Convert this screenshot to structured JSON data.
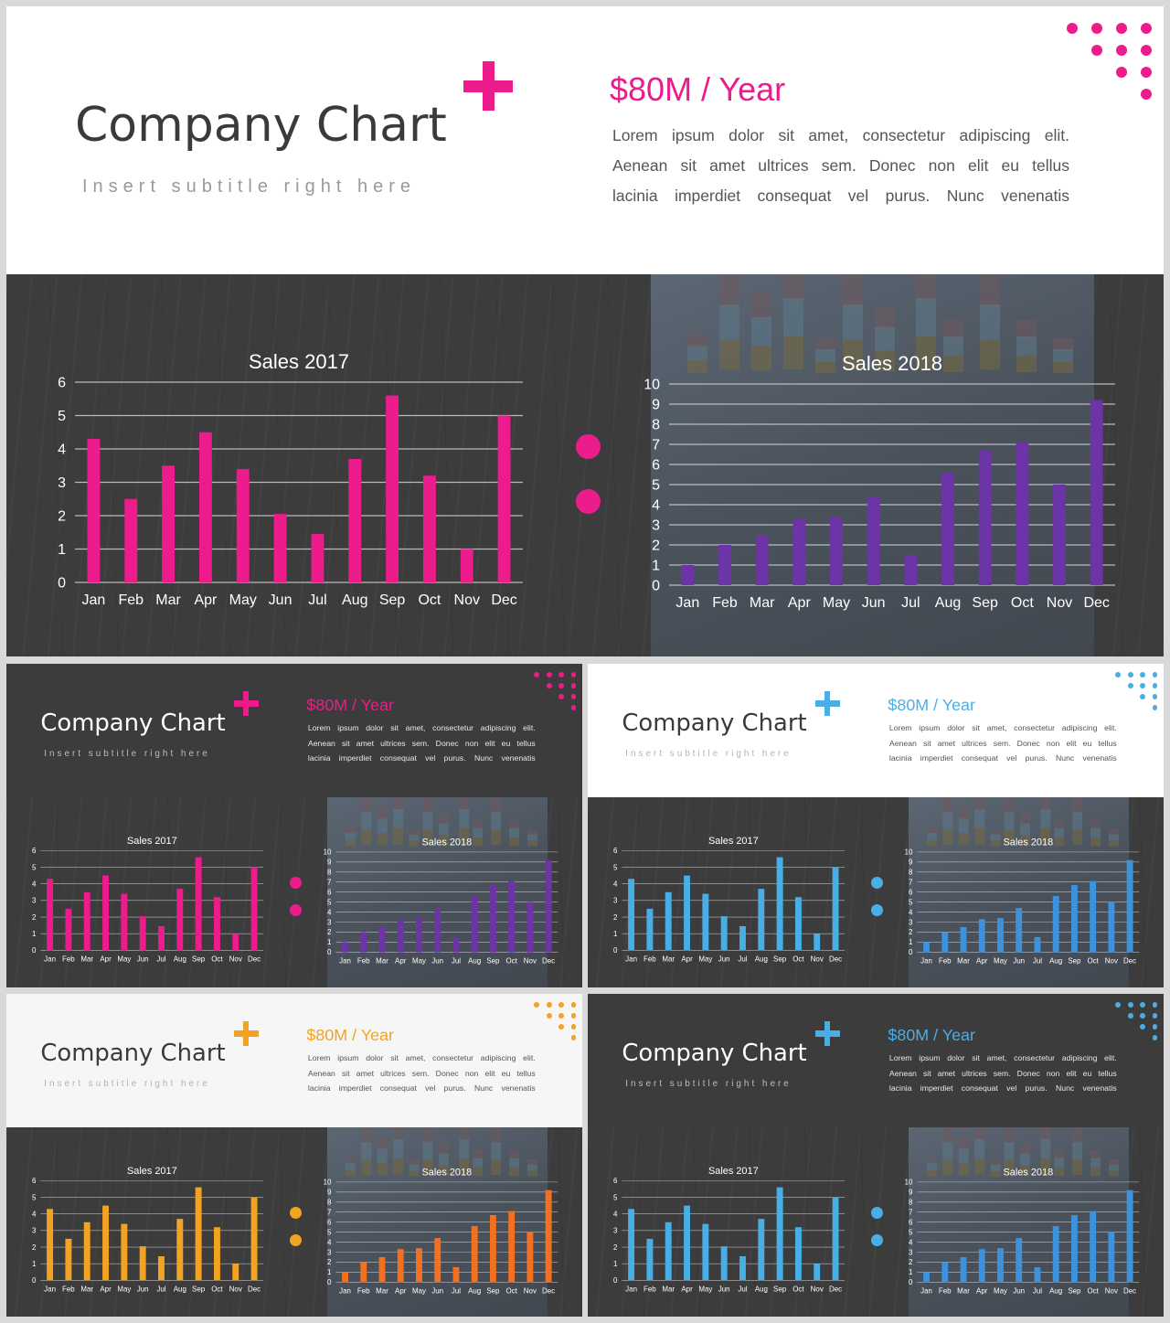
{
  "theme": {
    "pink": "#ec1c8c",
    "purple": "#6d34a8",
    "lightblue": "#4aaee6",
    "blue": "#3c92dc",
    "gold": "#f2a321",
    "orange": "#f37021",
    "dark_gray": "#3c3c3c",
    "white": "#ffffff"
  },
  "slides": [
    {
      "header": {
        "title": "Company Chart",
        "subtitle": "Insert subtitle right here",
        "amount": "$80M / Year",
        "description": [
          "Lorem ipsum dolor sit amet, consectetur adipiscing elit.",
          "Aenean sit amet ultrices sem. Donec non elit eu tellus",
          "lacinia imperdiet consequat vel purus. Nunc venenatis"
        ]
      }
    },
    {
      "header": {
        "title": "Company Chart",
        "subtitle": "Insert subtitle right here",
        "amount": "$80M / Year",
        "description": [
          "Lorem ipsum dolor sit amet, consectetur adipiscing elit.",
          "Aenean sit amet ultrices sem. Donec non elit eu tellus",
          "lacinia imperdiet consequat vel purus. Nunc venenatis"
        ]
      }
    },
    {
      "header": {
        "title": "Company Chart",
        "subtitle": "Insert subtitle right here",
        "amount": "$80M / Year",
        "description": [
          "Lorem ipsum dolor sit amet, consectetur adipiscing elit.",
          "Aenean sit amet ultrices sem. Donec non elit eu tellus",
          "lacinia imperdiet consequat vel purus. Nunc venenatis"
        ]
      }
    },
    {
      "header": {
        "title": "Company Chart",
        "subtitle": "Insert subtitle right here",
        "amount": "$80M / Year",
        "description": [
          "Lorem ipsum dolor sit amet, consectetur adipiscing elit.",
          "Aenean sit amet ultrices sem. Donec non elit eu tellus",
          "lacinia imperdiet consequat vel purus. Nunc venenatis"
        ]
      }
    },
    {
      "header": {
        "title": "Company Chart",
        "subtitle": "Insert subtitle right here",
        "amount": "$80M / Year",
        "description": [
          "Lorem ipsum dolor sit amet, consectetur adipiscing elit.",
          "Aenean sit amet ultrices sem. Donec non elit eu tellus",
          "lacinia imperdiet consequat vel purus. Nunc venenatis"
        ]
      }
    }
  ],
  "chart_data": [
    {
      "type": "bar",
      "title": "Sales 2017",
      "categories": [
        "Jan",
        "Feb",
        "Mar",
        "Apr",
        "May",
        "Jun",
        "Jul",
        "Aug",
        "Sep",
        "Oct",
        "Nov",
        "Dec"
      ],
      "values": [
        4.3,
        2.5,
        3.5,
        4.5,
        3.4,
        2.05,
        1.45,
        3.7,
        5.6,
        3.2,
        1.0,
        5.0
      ],
      "ylim": [
        0,
        6
      ],
      "yticks": [
        0,
        1,
        2,
        3,
        4,
        5,
        6
      ],
      "grid": true
    },
    {
      "type": "bar",
      "title": "Sales 2018",
      "categories": [
        "Jan",
        "Feb",
        "Mar",
        "Apr",
        "May",
        "Jun",
        "Jul",
        "Aug",
        "Sep",
        "Oct",
        "Nov",
        "Dec"
      ],
      "values": [
        1.0,
        2.0,
        2.5,
        3.3,
        3.4,
        4.4,
        1.5,
        5.6,
        6.7,
        7.1,
        5.0,
        9.2
      ],
      "ylim": [
        0,
        10
      ],
      "yticks": [
        0,
        1,
        2,
        3,
        4,
        5,
        6,
        7,
        8,
        9,
        10
      ],
      "grid": true
    }
  ]
}
